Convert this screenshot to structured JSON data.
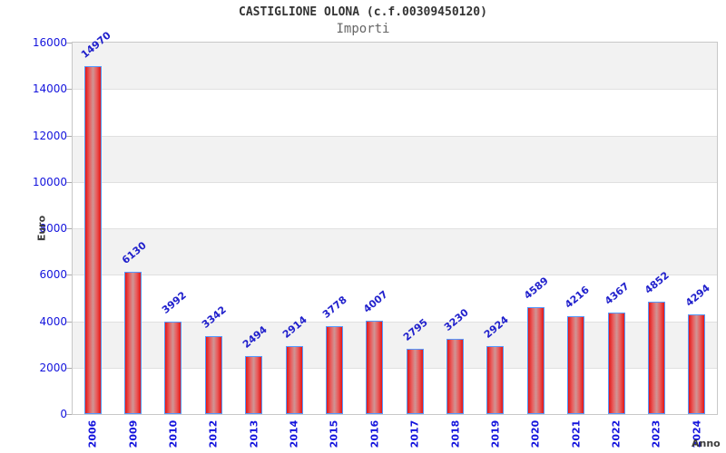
{
  "chart_data": {
    "type": "bar",
    "title": "CASTIGLIONE OLONA (c.f.00309450120)",
    "subtitle": "Importi",
    "xlabel": "Anno",
    "ylabel": "Euro",
    "categories": [
      "2006",
      "2009",
      "2010",
      "2012",
      "2013",
      "2014",
      "2015",
      "2016",
      "2017",
      "2018",
      "2019",
      "2020",
      "2021",
      "2022",
      "2023",
      "2024"
    ],
    "values": [
      14970,
      6130,
      3992,
      3342,
      2494,
      2914,
      3778,
      4007,
      2795,
      3230,
      2924,
      4589,
      4216,
      4367,
      4852,
      4294
    ],
    "ylim": [
      0,
      16000
    ],
    "yticks": [
      0,
      2000,
      4000,
      6000,
      8000,
      10000,
      12000,
      14000,
      16000
    ],
    "grid": "alternating-horizontal-bands",
    "legend": "none",
    "colors": {
      "bar_fill_edge": "#e31717",
      "bar_fill_inner": "#e86060",
      "bar_fill_mid": "#cf9595",
      "bar_border": "#5599ff",
      "label_blue": "#1414dd",
      "band_gray": "#f2f2f2",
      "band_white": "#ffffff",
      "gridline": "#e0e0e0",
      "plot_border": "#c8c8c8",
      "title_text": "#333333",
      "subtitle_text": "#666666",
      "axis_title_text": "#3c3c3c"
    }
  }
}
